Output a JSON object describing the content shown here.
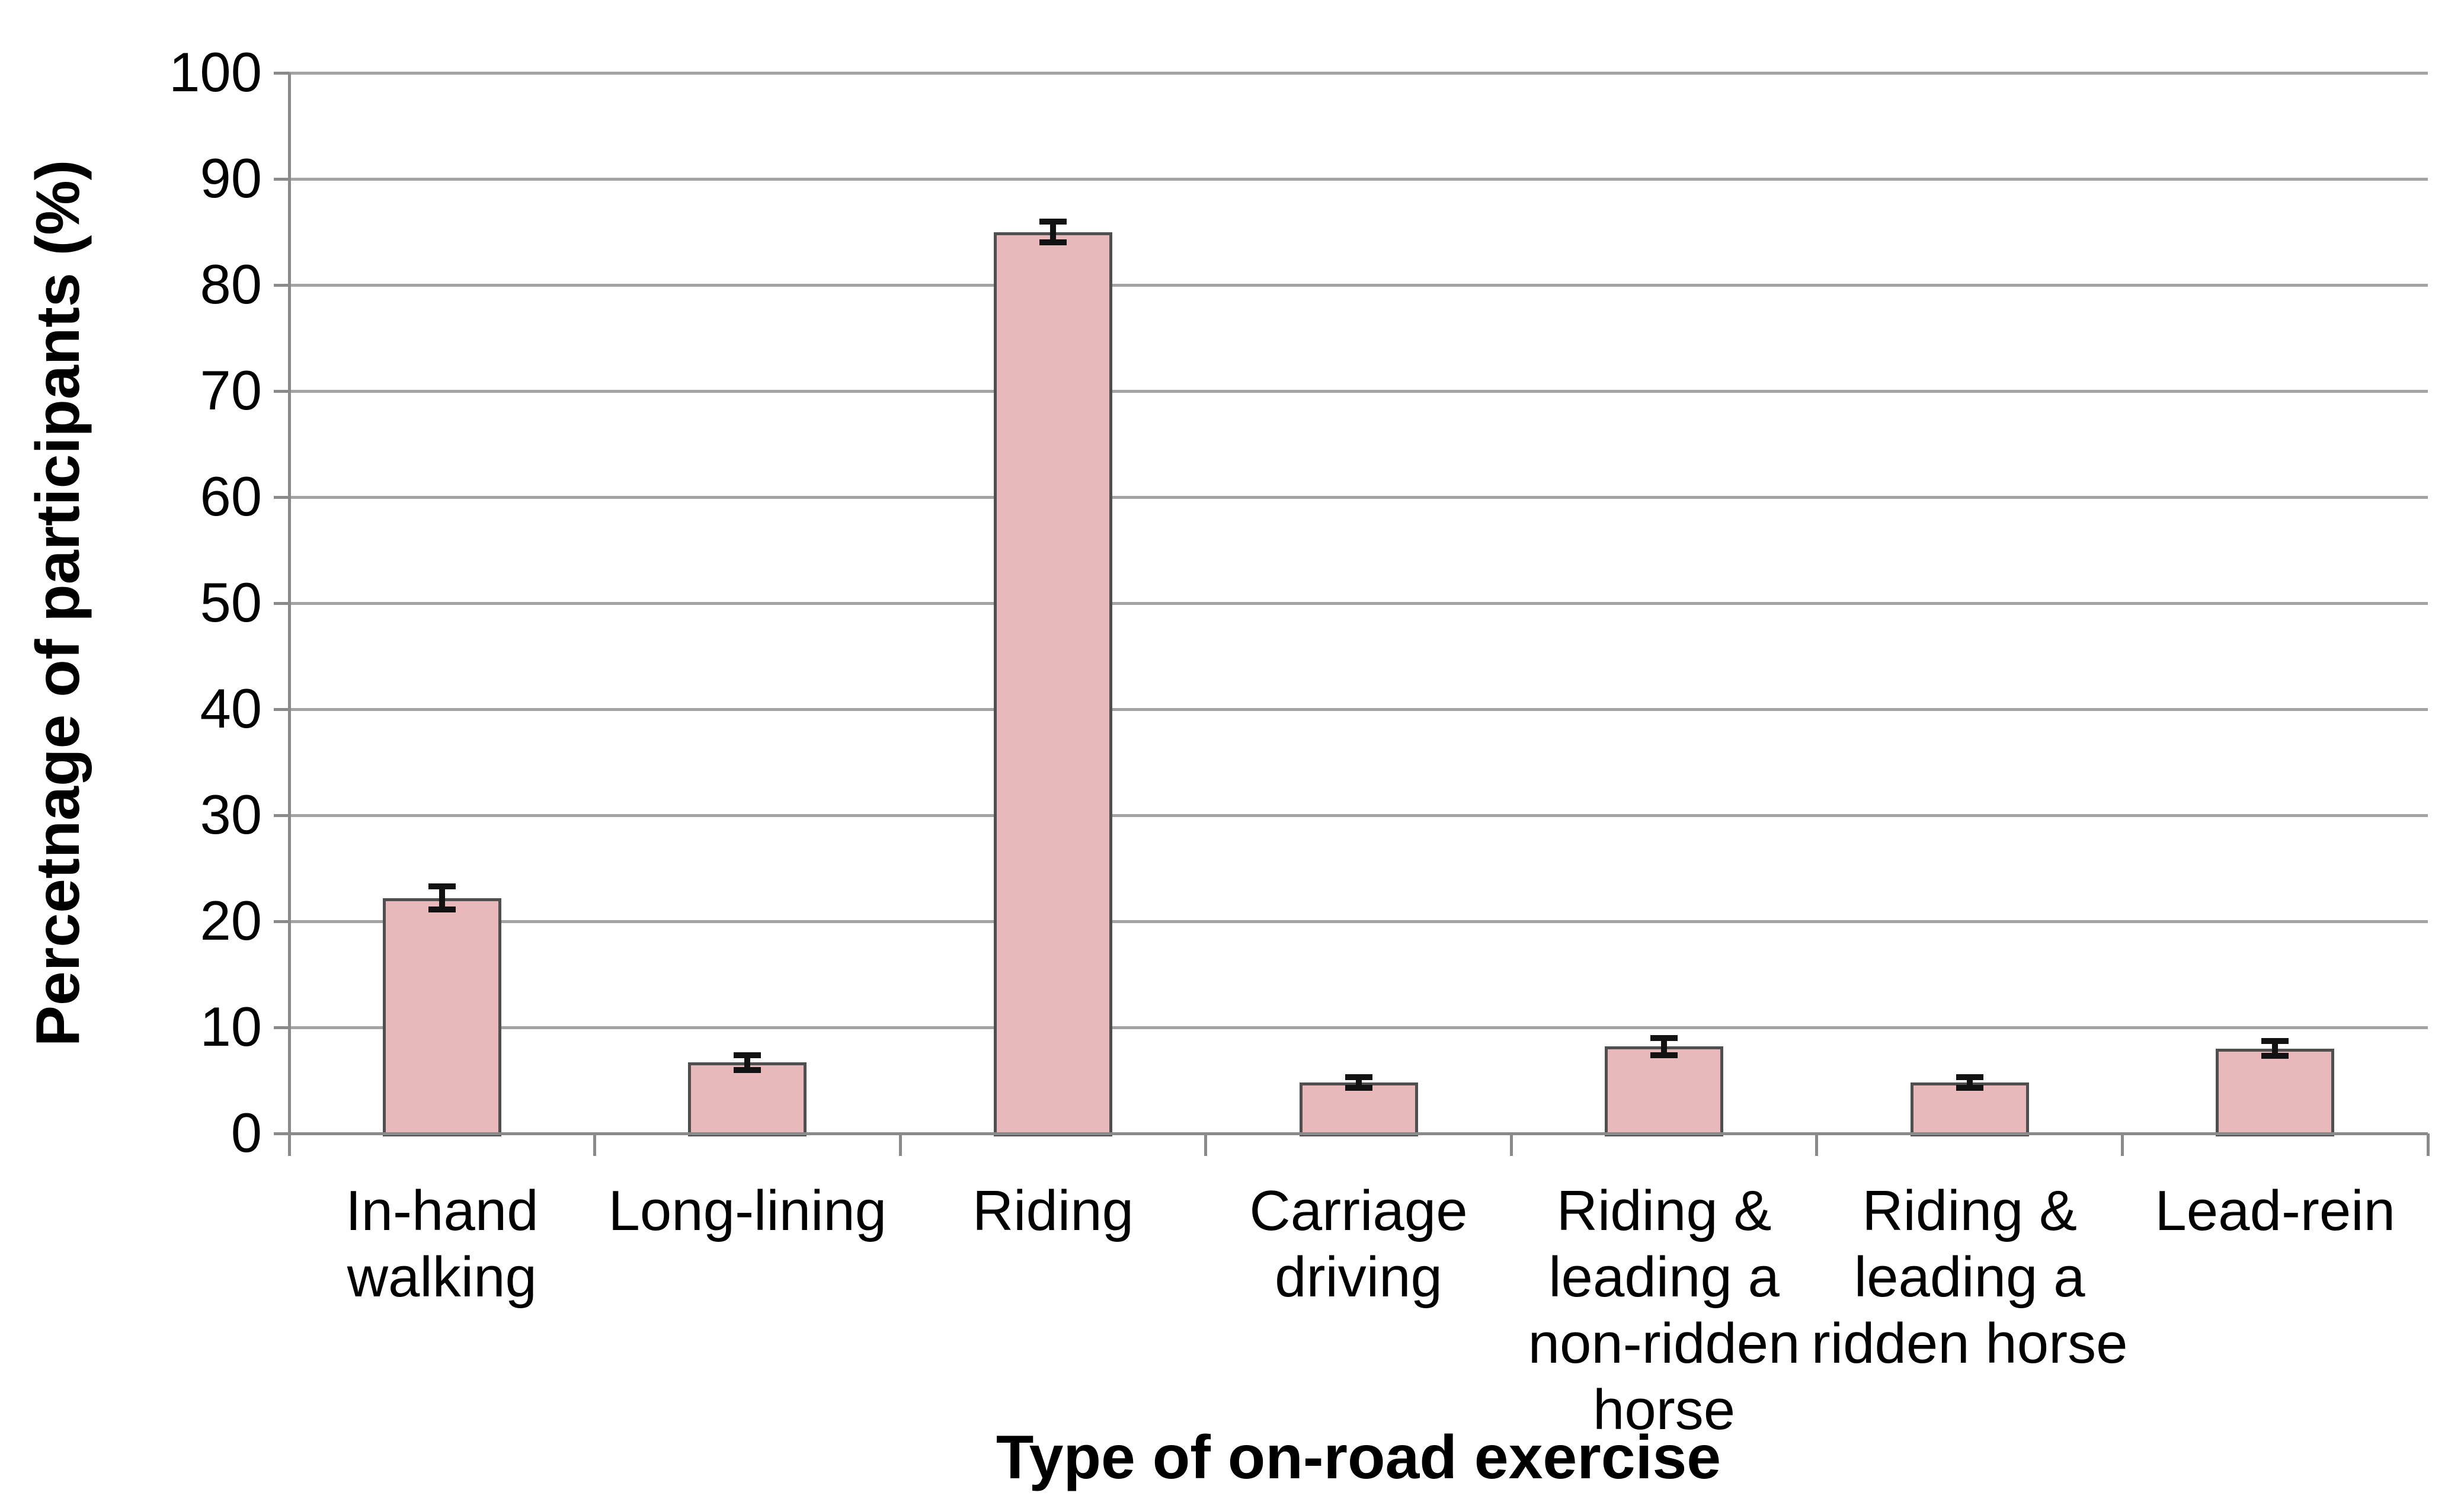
{
  "chart_data": {
    "type": "bar",
    "title": "",
    "xlabel": "Type of on-road exercise",
    "ylabel": "Percetnage of participants (%)",
    "categories": [
      "In-hand walking",
      "Long-lining",
      "Riding",
      "Carriage driving",
      "Riding & leading a non-ridden horse",
      "Riding & leading a ridden horse",
      "Lead-rein"
    ],
    "category_label_lines": [
      [
        "In-hand",
        "walking"
      ],
      [
        "Long-lining"
      ],
      [
        "Riding"
      ],
      [
        "Carriage",
        "driving"
      ],
      [
        "Riding &",
        "leading a",
        "non-ridden",
        "horse"
      ],
      [
        "Riding &",
        "leading a",
        "ridden horse"
      ],
      [
        "Lead-rein"
      ]
    ],
    "values": [
      22.2,
      6.7,
      85,
      4.8,
      8.2,
      4.8,
      8
    ],
    "error_bars": [
      1.1,
      0.7,
      1,
      0.5,
      0.8,
      0.5,
      0.7
    ],
    "ylim": [
      0,
      100
    ],
    "ytick_interval": 10,
    "ytick_labels": [
      "0",
      "10",
      "20",
      "30",
      "40",
      "50",
      "60",
      "70",
      "80",
      "90",
      "100"
    ],
    "grid": "horizontal",
    "legend_position": "none",
    "colors": {
      "bar_fill": "#e8b8bb",
      "bar_border": "#4f4f4f",
      "gridline": "#a3a3a3",
      "axis_line": "#8a8a8a",
      "error_bar": "#121212",
      "text": "#000000",
      "background": "#ffffff"
    }
  }
}
